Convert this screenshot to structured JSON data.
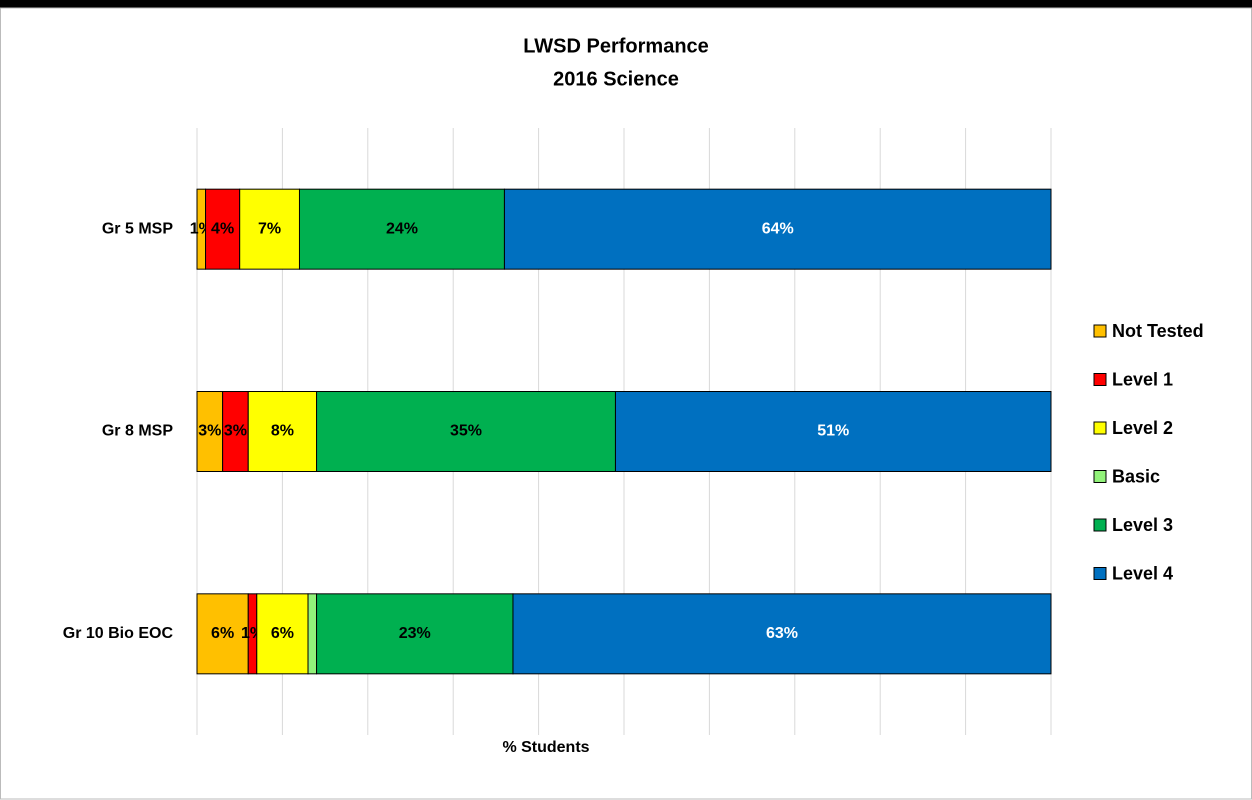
{
  "chart_data": {
    "type": "stacked-bar-horizontal",
    "title": "LWSD Performance",
    "subtitle": "2016 Science",
    "x_label": "% Students",
    "categories": [
      "Gr 5 MSP",
      "Gr 8 MSP",
      "Gr 10 Bio EOC"
    ],
    "series": [
      {
        "name": "Not Tested",
        "color": "#ffc000",
        "values": [
          1,
          3,
          6
        ],
        "value_labels": [
          "1%",
          "3%",
          "6%"
        ]
      },
      {
        "name": "Level 1",
        "color": "#ff0000",
        "values": [
          4,
          3,
          1
        ],
        "value_labels": [
          "4%",
          "3%",
          "1%"
        ]
      },
      {
        "name": "Level 2",
        "color": "#ffff00",
        "values": [
          7,
          8,
          6
        ],
        "value_labels": [
          "7%",
          "8%",
          "6%"
        ]
      },
      {
        "name": "Basic",
        "color": "#92f27a",
        "values": [
          0,
          0,
          1
        ],
        "value_labels": [
          null,
          null,
          null
        ]
      },
      {
        "name": "Level 3",
        "color": "#00b050",
        "values": [
          24,
          35,
          23
        ],
        "value_labels": [
          "24%",
          "35%",
          "23%"
        ]
      },
      {
        "name": "Level 4",
        "color": "#0070c0",
        "values": [
          64,
          51,
          63
        ],
        "value_labels": [
          "64%",
          "51%",
          "63%"
        ]
      }
    ],
    "xlim": [
      0,
      100
    ],
    "xticks": [
      0,
      10,
      20,
      30,
      40,
      50,
      60,
      70,
      80,
      90,
      100
    ],
    "grid": true,
    "legend": "right"
  }
}
